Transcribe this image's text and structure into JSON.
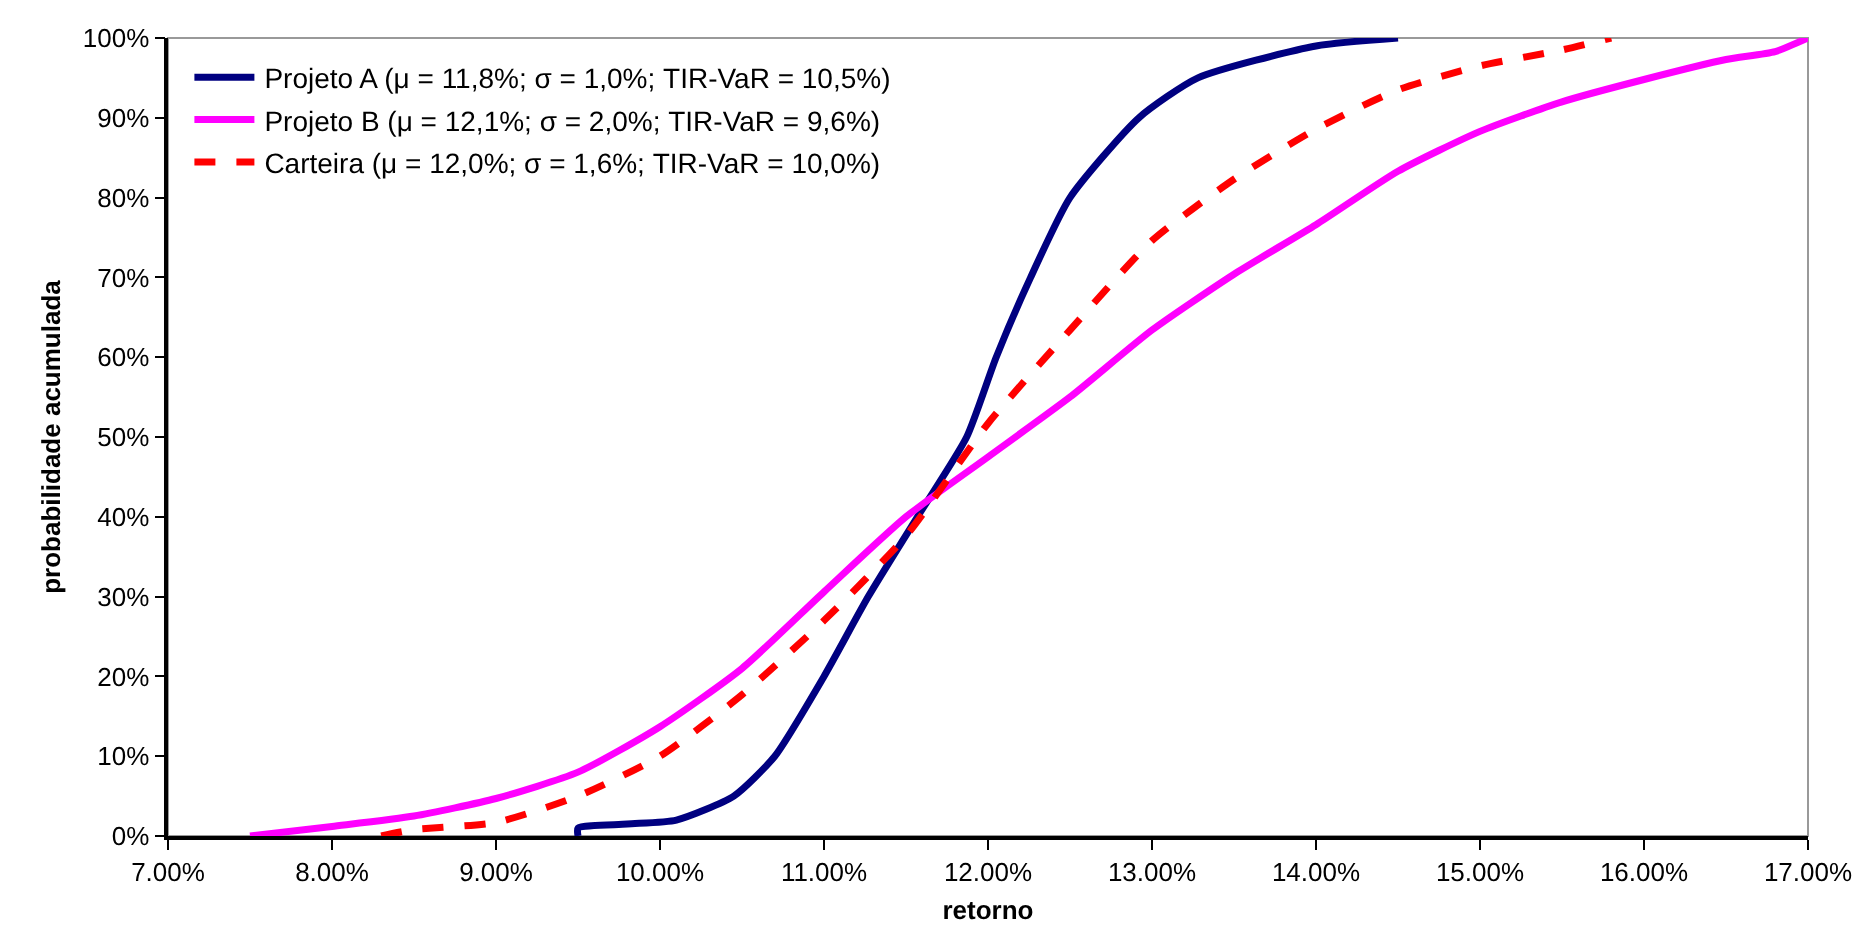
{
  "chart_data": {
    "type": "line",
    "xlabel": "retorno",
    "ylabel": "probabilidade acumulada",
    "legend": "top left",
    "grid": false,
    "marker": "none",
    "xlim": [
      7,
      17
    ],
    "ylim": [
      0,
      100
    ],
    "xticks": [
      {
        "value": 7,
        "label": "7.00%"
      },
      {
        "value": 8,
        "label": "8.00%"
      },
      {
        "value": 9,
        "label": "9.00%"
      },
      {
        "value": 10,
        "label": "10.00%"
      },
      {
        "value": 11,
        "label": "11.00%"
      },
      {
        "value": 12,
        "label": "12.00%"
      },
      {
        "value": 13,
        "label": "13.00%"
      },
      {
        "value": 14,
        "label": "14.00%"
      },
      {
        "value": 15,
        "label": "15.00%"
      },
      {
        "value": 16,
        "label": "16.00%"
      },
      {
        "value": 17,
        "label": "17.00%"
      }
    ],
    "yticks": [
      {
        "value": 0,
        "label": "0%"
      },
      {
        "value": 10,
        "label": "10%"
      },
      {
        "value": 20,
        "label": "20%"
      },
      {
        "value": 30,
        "label": "30%"
      },
      {
        "value": 40,
        "label": "40%"
      },
      {
        "value": 50,
        "label": "50%"
      },
      {
        "value": 60,
        "label": "60%"
      },
      {
        "value": 70,
        "label": "70%"
      },
      {
        "value": 80,
        "label": "80%"
      },
      {
        "value": 90,
        "label": "90%"
      },
      {
        "value": 100,
        "label": "100%"
      }
    ],
    "series": [
      {
        "name": "Projeto A (μ = 11,8%; σ = 1,0%; TIR-VaR = 10,5%)",
        "color": "#000080",
        "line_style": "solid",
        "x": [
          9.5,
          9.5,
          9.8,
          10.1,
          10.45,
          10.7,
          11.0,
          11.27,
          11.57,
          11.87,
          12.05,
          12.26,
          12.5,
          12.92,
          13.28,
          14.0,
          14.5
        ],
        "values": [
          0,
          1,
          1.5,
          2,
          5,
          10,
          20,
          30,
          40,
          50,
          60,
          70,
          80,
          90,
          95,
          99,
          100
        ]
      },
      {
        "name": "Projeto B (μ = 12,1%; σ = 2,0%; TIR-VaR = 9,6%)",
        "color": "#ff00ff",
        "line_style": "solid",
        "x": [
          7.5,
          8.0,
          8.5,
          9.0,
          9.5,
          10.0,
          10.5,
          11.0,
          11.5,
          12.0,
          12.5,
          13.0,
          13.5,
          14.0,
          14.5,
          15.0,
          15.5,
          16.0,
          16.5,
          16.8,
          17.0
        ],
        "values": [
          0,
          1.2,
          2.5,
          4.7,
          8,
          13.7,
          21,
          30.6,
          40,
          47.5,
          55,
          63.4,
          70.4,
          76.6,
          83.3,
          88.3,
          92,
          94.8,
          97.3,
          98.3,
          100
        ]
      },
      {
        "name": "Carteira (μ = 12,0%; σ = 1,6%; TIR-VaR = 10,0%)",
        "color": "#ff0000",
        "line_style": "dashed",
        "x": [
          8.3,
          8.5,
          9.0,
          9.5,
          10.0,
          10.5,
          11.0,
          11.5,
          12.0,
          12.5,
          13.0,
          13.5,
          14.0,
          14.5,
          15.0,
          15.5,
          15.8
        ],
        "values": [
          0,
          0.8,
          1.7,
          5,
          10,
          17.7,
          27,
          37.6,
          51.7,
          63.4,
          74.6,
          82.3,
          88.6,
          93.5,
          96.5,
          98.5,
          100
        ]
      }
    ]
  }
}
